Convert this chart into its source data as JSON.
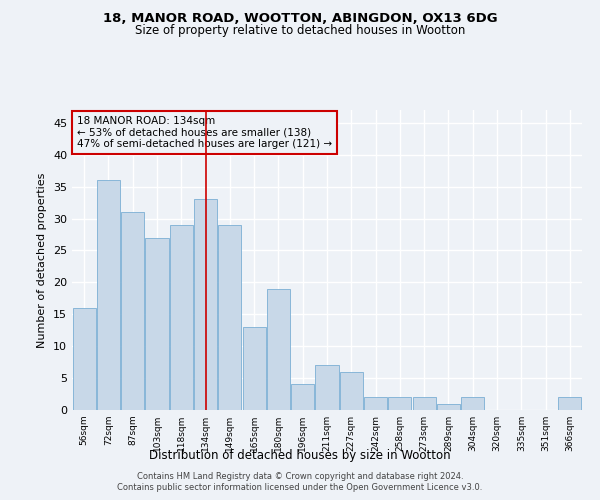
{
  "title1": "18, MANOR ROAD, WOOTTON, ABINGDON, OX13 6DG",
  "title2": "Size of property relative to detached houses in Wootton",
  "xlabel": "Distribution of detached houses by size in Wootton",
  "ylabel": "Number of detached properties",
  "categories": [
    "56sqm",
    "72sqm",
    "87sqm",
    "103sqm",
    "118sqm",
    "134sqm",
    "149sqm",
    "165sqm",
    "180sqm",
    "196sqm",
    "211sqm",
    "227sqm",
    "242sqm",
    "258sqm",
    "273sqm",
    "289sqm",
    "304sqm",
    "320sqm",
    "335sqm",
    "351sqm",
    "366sqm"
  ],
  "values": [
    16,
    36,
    31,
    27,
    29,
    33,
    29,
    13,
    19,
    4,
    7,
    6,
    2,
    2,
    2,
    1,
    2,
    0,
    0,
    0,
    2
  ],
  "bar_color": "#c8d8e8",
  "bar_edge_color": "#7bafd4",
  "highlight_index": 5,
  "highlight_line_color": "#cc0000",
  "annotation_line1": "18 MANOR ROAD: 134sqm",
  "annotation_line2": "← 53% of detached houses are smaller (138)",
  "annotation_line3": "47% of semi-detached houses are larger (121) →",
  "annotation_box_edge_color": "#cc0000",
  "ylim": [
    0,
    47
  ],
  "yticks": [
    0,
    5,
    10,
    15,
    20,
    25,
    30,
    35,
    40,
    45
  ],
  "footer1": "Contains HM Land Registry data © Crown copyright and database right 2024.",
  "footer2": "Contains public sector information licensed under the Open Government Licence v3.0.",
  "bg_color": "#eef2f7",
  "grid_color": "#ffffff"
}
